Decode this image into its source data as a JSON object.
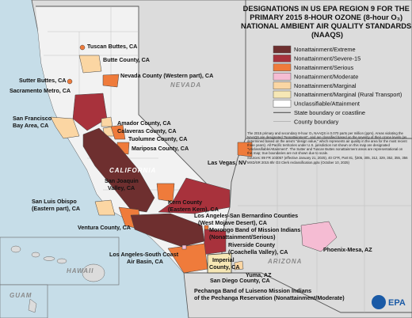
{
  "title": {
    "lines": [
      "DESIGNATIONS IN US EPA REGION 9 FOR THE",
      "PRIMARY 2015 8-HOUR OZONE (8-hour O₃)",
      "NATIONAL AMBIENT AIR QUALITY STANDARDS",
      "(NAAQS)"
    ]
  },
  "legend": {
    "items": [
      {
        "label": "Nonattainment/Extreme",
        "color": "#6e2f2f"
      },
      {
        "label": "Nonattainment/Severe-15",
        "color": "#a8323c"
      },
      {
        "label": "Nonattainment/Serious",
        "color": "#ef7b3b"
      },
      {
        "label": "Nonattainment/Moderate",
        "color": "#f5bcd3"
      },
      {
        "label": "Nonattainment/Marginal",
        "color": "#fbd6a3"
      },
      {
        "label": "Nonattainment/Marginal (Rural Transport)",
        "color": "#f6e7b5"
      },
      {
        "label": "Unclassifiable/Attainment",
        "color": "#ffffff"
      },
      {
        "label": "State boundary or coastline",
        "color": "#555555"
      },
      {
        "label": "County boundary",
        "color": "#a0a0a0"
      }
    ]
  },
  "note": {
    "text": "The 2015 primary and secondary 8-hour O₃ NAAQS is 0.070 parts per million (ppm). Areas violating the NAAQS are designated \"Nonattainment\", and are classified based on the severity of their ozone levels (as determined based on the area's \"design value,\" which represents air quality in the area for the most recent three years). All Pacific territories under U.S. jurisdiction not shown on this map are designated \"Unclassifiable/Attainment\". The Sutter and Tuscan Buttes nonattainment areas are representational on this map; true boundaries are not shown due to scale.",
    "sources": "Sources: 89 FR 103057 (effective January 21, 2025), 40 CFR, Part 81, §305, 305, 312, 329, 352, 355, 356",
    "file": "MXD/SR 2015 8hr O3 Clerk reclassification.pptx (October 10, 2025)"
  },
  "places": [
    {
      "lines": [
        "Tuscan Buttes, CA"
      ]
    },
    {
      "lines": [
        "Butte County, CA"
      ]
    },
    {
      "lines": [
        "Nevada County (Western part), CA"
      ]
    },
    {
      "lines": [
        "NEVADA"
      ]
    },
    {
      "lines": [
        "Sutter Buttes, CA"
      ]
    },
    {
      "lines": [
        "Sacramento Metro, CA"
      ]
    },
    {
      "lines": [
        "Amador County, CA"
      ]
    },
    {
      "lines": [
        "Calaveras County, CA"
      ]
    },
    {
      "lines": [
        "Tuolumne County, CA"
      ]
    },
    {
      "lines": [
        "San Francisco",
        "Bay Area, CA"
      ]
    },
    {
      "lines": [
        "Mariposa County, CA"
      ]
    },
    {
      "lines": [
        "CALIFORNIA"
      ]
    },
    {
      "lines": [
        "San Joaquin",
        "Valley, CA"
      ]
    },
    {
      "lines": [
        "Las Vegas, NV"
      ]
    },
    {
      "lines": [
        "San Luis Obispo",
        "(Eastern part), CA"
      ]
    },
    {
      "lines": [
        "Kern County",
        "(Eastern Kern), CA"
      ]
    },
    {
      "lines": [
        "Los Angeles-San Bernardino Counties",
        "(West Mojave Desert), CA"
      ]
    },
    {
      "lines": [
        "Morongo Band of Mission Indians",
        "(Nonattainment/Serious)"
      ]
    },
    {
      "lines": [
        "Ventura County, CA"
      ]
    },
    {
      "lines": [
        "Riverside County",
        "(Coachella Valley), CA"
      ]
    },
    {
      "lines": [
        "ARIZONA"
      ]
    },
    {
      "lines": [
        "Phoenix-Mesa, AZ"
      ]
    },
    {
      "lines": [
        "Los Angeles-South Coast",
        "Air Basin, CA"
      ]
    },
    {
      "lines": [
        "HAWAII"
      ]
    },
    {
      "lines": [
        "Imperial",
        "County, CA"
      ]
    },
    {
      "lines": [
        "Yuma, AZ"
      ]
    },
    {
      "lines": [
        "GUAM"
      ]
    },
    {
      "lines": [
        "San Diego County, CA"
      ]
    },
    {
      "lines": [
        "Pechanga Band of Luiseno Mission Indians",
        "of the Pechanga Reservation (Nonattainment/Moderate)"
      ]
    }
  ],
  "logo": "EPA"
}
